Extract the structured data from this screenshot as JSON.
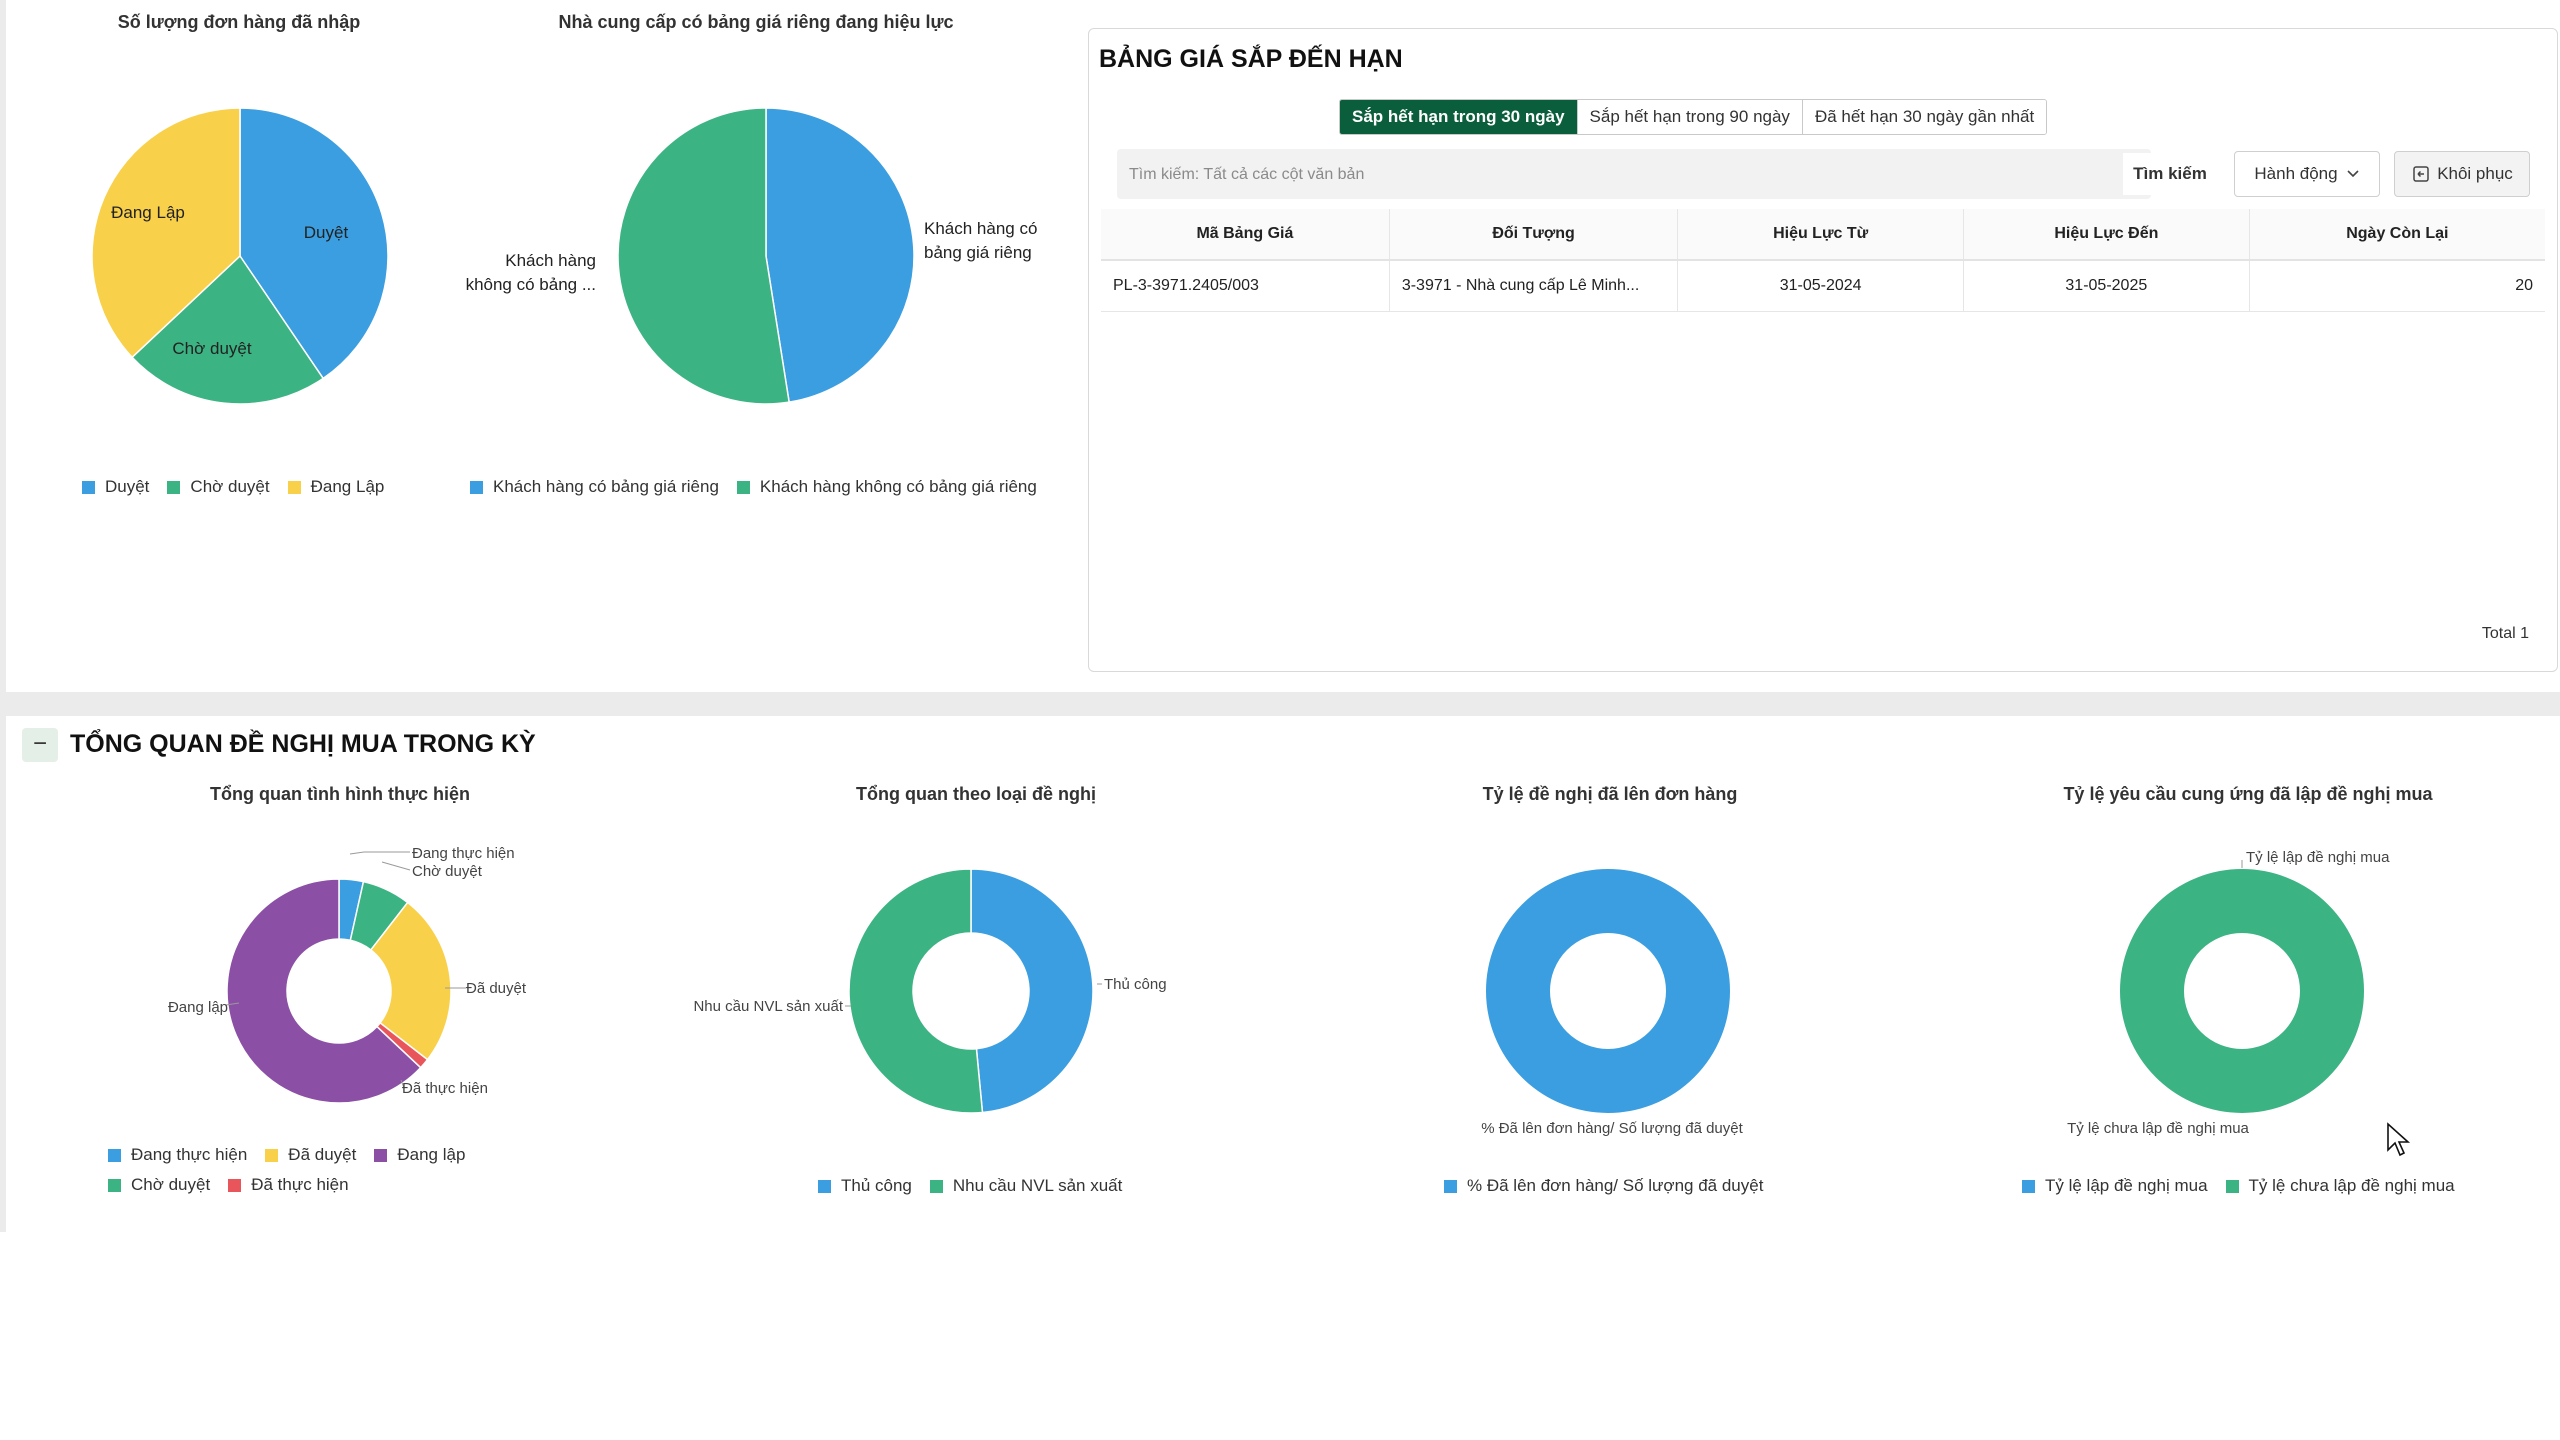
{
  "colors": {
    "blue": "#3a9ee0",
    "green": "#3cb383",
    "yellow": "#f9d04a",
    "purple": "#8b4fa5",
    "red": "#e8555a",
    "tab_active": "#0b5e3b"
  },
  "charts": {
    "orders_entered": {
      "title": "Số lượng đơn hàng đã nhập",
      "labels": {
        "approved": "Duyệt",
        "pending": "Chờ duyệt",
        "draft": "Đang Lập"
      },
      "legend": [
        "Duyệt",
        "Chờ duyệt",
        "Đang Lập"
      ]
    },
    "supplier_pricelist": {
      "title": "Nhà cung cấp có bảng giá riêng đang hiệu lực",
      "label_with": [
        "Khách hàng có",
        "bảng giá riêng"
      ],
      "label_without": [
        "Khách hàng",
        "không có bảng ..."
      ],
      "legend": [
        "Khách hàng có bảng giá riêng",
        "Khách hàng không có bảng giá riêng"
      ]
    },
    "progress_overview": {
      "title": "Tổng quan tình hình thực hiện",
      "labels": {
        "in_progress": "Đang thực hiện",
        "pending": "Chờ duyệt",
        "approved": "Đã duyệt",
        "done": "Đã thực hiện",
        "draft": "Đang lập"
      },
      "legend": [
        "Đang thực hiện",
        "Đã duyệt",
        "Đang lập",
        "Chờ duyệt",
        "Đã thực hiện"
      ]
    },
    "by_request_type": {
      "title": "Tổng quan theo loại đề nghị",
      "labels": {
        "manual": "Thủ công",
        "material": "Nhu cầu NVL sản xuất"
      },
      "legend": [
        "Thủ công",
        "Nhu cầu NVL sản xuất"
      ]
    },
    "to_order_ratio": {
      "title": "Tỷ lệ đề nghị đã lên đơn hàng",
      "label": "% Đã lên đơn hàng/ Số lượng đã duyệt",
      "legend": [
        "% Đã lên đơn hàng/ Số lượng đã duyệt"
      ]
    },
    "supply_request_ratio": {
      "title": "Tỷ lệ yêu cầu cung ứng đã lập đề nghị mua",
      "label_created": "Tỷ lệ lập đề nghị mua",
      "label_not_created": "Tỷ lệ chưa lập đề nghị mua",
      "legend": [
        "Tỷ lệ lập đề nghị mua",
        "Tỷ lệ chưa lập đề nghị mua"
      ]
    }
  },
  "chart_data": [
    {
      "type": "pie",
      "title": "Số lượng đơn hàng đã nhập",
      "categories": [
        "Duyệt",
        "Chờ duyệt",
        "Đang Lập"
      ],
      "values": [
        40.5,
        22.5,
        37.0
      ]
    },
    {
      "type": "pie",
      "title": "Nhà cung cấp có bảng giá riêng đang hiệu lực",
      "categories": [
        "Khách hàng có bảng giá riêng",
        "Khách hàng không có bảng giá riêng"
      ],
      "values": [
        47.5,
        52.5
      ]
    },
    {
      "type": "pie",
      "title": "Tổng quan tình hình thực hiện",
      "categories": [
        "Đang thực hiện",
        "Chờ duyệt",
        "Đã duyệt",
        "Đã thực hiện",
        "Đang lập"
      ],
      "values": [
        3.5,
        7.0,
        25.0,
        1.5,
        63.0
      ]
    },
    {
      "type": "pie",
      "title": "Tổng quan theo loại đề nghị",
      "categories": [
        "Thủ công",
        "Nhu cầu NVL sản xuất"
      ],
      "values": [
        48.5,
        51.5
      ]
    },
    {
      "type": "pie",
      "title": "Tỷ lệ đề nghị đã lên đơn hàng",
      "categories": [
        "% Đã lên đơn hàng/ Số lượng đã duyệt"
      ],
      "values": [
        100
      ]
    },
    {
      "type": "pie",
      "title": "Tỷ lệ yêu cầu cung ứng đã lập đề nghị mua",
      "categories": [
        "Tỷ lệ lập đề nghị mua",
        "Tỷ lệ chưa lập đề nghị mua"
      ],
      "values": [
        0,
        100
      ]
    }
  ],
  "price_card": {
    "title": "BẢNG GIÁ SẮP ĐẾN HẠN",
    "tabs": [
      "Sắp hết hạn trong 30 ngày",
      "Sắp hết hạn trong 90 ngày",
      "Đã hết hạn 30 ngày gần nhất"
    ],
    "search_placeholder": "Tìm kiếm: Tất cả các cột văn bản",
    "search_button": "Tìm kiếm",
    "action_button": "Hành động",
    "restore_button": "Khôi phục",
    "columns": [
      "Mã Bảng Giá",
      "Đối Tượng",
      "Hiệu Lực Từ",
      "Hiệu Lực Đến",
      "Ngày Còn Lại"
    ],
    "rows": [
      {
        "code": "PL-3-3971.2405/003",
        "object": "3-3971 - Nhà cung cấp Lê Minh...",
        "from": "31-05-2024",
        "to": "31-05-2025",
        "days_left": "20"
      }
    ],
    "total": "Total 1"
  },
  "section": {
    "toggle": "−",
    "title": "TỔNG QUAN ĐỀ NGHỊ MUA TRONG KỲ"
  }
}
